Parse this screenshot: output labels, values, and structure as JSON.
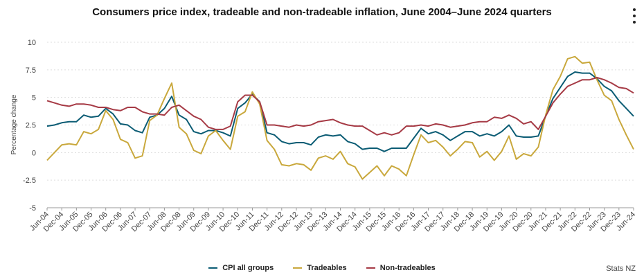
{
  "chart_data": {
    "type": "line",
    "title": "Consumers price index, tradeable and non-tradeable inflation, June 2004–June 2024 quarters",
    "ylabel": "Percentage change",
    "xlabel": "",
    "ylim": [
      -5,
      10
    ],
    "yticks": [
      "10",
      "7.5",
      "5",
      "2.5",
      "0",
      "-2.5",
      "-5"
    ],
    "ytick_values": [
      10,
      7.5,
      5,
      2.5,
      0,
      -2.5,
      -5
    ],
    "x_tick_labels": [
      "Jun-04",
      "Dec-04",
      "Jun-05",
      "Dec-05",
      "Jun-06",
      "Dec-06",
      "Jun-07",
      "Dec-07",
      "Jun-08",
      "Dec-08",
      "Jun-09",
      "Dec-09",
      "Jun-10",
      "Dec-10",
      "Jun-11",
      "Dec-11",
      "Jun-12",
      "Dec-12",
      "Jun-13",
      "Dec-13",
      "Jun-14",
      "Dec-14",
      "Jun-15",
      "Dec-15",
      "Jun-16",
      "Dec-16",
      "Jun-17",
      "Dec-17",
      "Jun-18",
      "Dec-18",
      "Jun-19",
      "Dec-19",
      "Jun-20",
      "Dec-20",
      "Jun-21",
      "Dec-21",
      "Jun-22",
      "Dec-22",
      "Jun-23",
      "Dec-23",
      "Jun-24"
    ],
    "series": [
      {
        "name": "CPI all groups",
        "color": "#0b5c74",
        "values": [
          2.4,
          2.5,
          2.7,
          2.8,
          2.8,
          3.4,
          3.2,
          3.3,
          4.0,
          3.5,
          2.6,
          2.5,
          2.0,
          1.8,
          3.2,
          3.4,
          4.0,
          5.1,
          3.4,
          3.0,
          1.9,
          1.7,
          2.0,
          2.0,
          1.8,
          1.5,
          4.0,
          4.5,
          5.3,
          4.6,
          1.8,
          1.6,
          1.0,
          0.8,
          0.9,
          0.9,
          0.7,
          1.4,
          1.6,
          1.5,
          1.6,
          1.0,
          0.8,
          0.3,
          0.4,
          0.4,
          0.1,
          0.4,
          0.4,
          0.4,
          1.3,
          2.2,
          1.7,
          1.9,
          1.6,
          1.1,
          1.5,
          1.9,
          1.9,
          1.5,
          1.7,
          1.5,
          1.9,
          2.5,
          1.5,
          1.4,
          1.4,
          1.5,
          3.3,
          4.9,
          5.9,
          6.9,
          7.3,
          7.2,
          7.2,
          6.7,
          6.0,
          5.6,
          4.7,
          4.0,
          3.3
        ]
      },
      {
        "name": "Tradeables",
        "color": "#c9a83c",
        "values": [
          -0.7,
          0.0,
          0.7,
          0.8,
          0.7,
          1.9,
          1.7,
          2.1,
          3.8,
          3.0,
          1.2,
          0.9,
          -0.5,
          -0.3,
          2.9,
          3.4,
          4.9,
          6.3,
          2.3,
          1.7,
          0.2,
          -0.1,
          1.5,
          2.0,
          1.1,
          0.3,
          3.3,
          3.7,
          5.5,
          4.4,
          1.1,
          0.3,
          -1.1,
          -1.2,
          -1.0,
          -1.1,
          -1.6,
          -0.5,
          -0.3,
          -0.6,
          0.1,
          -1.0,
          -1.3,
          -2.4,
          -1.8,
          -1.2,
          -2.1,
          -1.2,
          -1.5,
          -2.1,
          -0.2,
          1.6,
          0.9,
          1.1,
          0.5,
          -0.3,
          0.3,
          1.0,
          0.9,
          -0.4,
          0.1,
          -0.7,
          0.1,
          1.5,
          -0.6,
          -0.1,
          -0.3,
          0.5,
          3.4,
          5.7,
          6.9,
          8.5,
          8.7,
          8.1,
          8.2,
          6.6,
          5.2,
          4.7,
          3.0,
          1.6,
          0.3
        ]
      },
      {
        "name": "Non-tradeables",
        "color": "#a63a45",
        "values": [
          4.7,
          4.5,
          4.3,
          4.2,
          4.4,
          4.4,
          4.3,
          4.1,
          4.1,
          3.9,
          3.8,
          4.1,
          4.1,
          3.7,
          3.5,
          3.5,
          3.4,
          4.1,
          4.3,
          3.8,
          3.3,
          3.0,
          2.3,
          2.1,
          2.1,
          2.4,
          4.6,
          5.2,
          5.2,
          4.6,
          2.5,
          2.5,
          2.4,
          2.3,
          2.5,
          2.4,
          2.5,
          2.8,
          2.9,
          3.0,
          2.7,
          2.5,
          2.4,
          2.4,
          2.0,
          1.6,
          1.8,
          1.6,
          1.8,
          2.4,
          2.4,
          2.5,
          2.4,
          2.6,
          2.5,
          2.3,
          2.4,
          2.5,
          2.7,
          2.8,
          2.8,
          3.2,
          3.1,
          3.4,
          3.1,
          2.6,
          2.8,
          2.1,
          3.3,
          4.5,
          5.3,
          6.0,
          6.3,
          6.6,
          6.6,
          6.8,
          6.6,
          6.3,
          5.9,
          5.8,
          5.4
        ]
      }
    ],
    "legend": [
      "CPI all groups",
      "Tradeables",
      "Non-tradeables"
    ],
    "legend_position": "bottom"
  },
  "source": "Stats NZ"
}
